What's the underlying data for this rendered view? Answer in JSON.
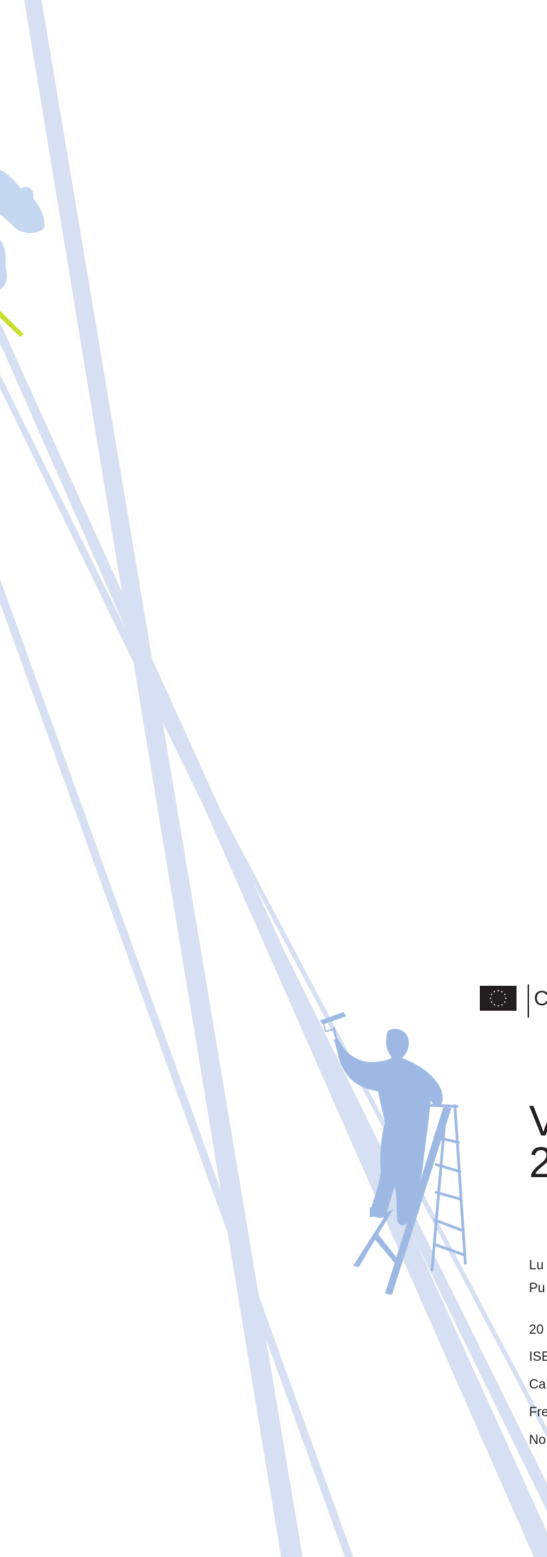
{
  "cover": {
    "logo": {
      "emblem": "eu-flag-icon",
      "letter": "C"
    },
    "title_lines": [
      "V",
      "2"
    ],
    "publication_lines": [
      "Lu",
      "Pu"
    ],
    "details": [
      "20",
      "ISE",
      "Ca",
      "Fre",
      "No"
    ]
  },
  "colors": {
    "stripe": "#d6e0f2",
    "figure": "#9db9e3",
    "accent": "#c9dd2b",
    "text": "#231f20"
  }
}
